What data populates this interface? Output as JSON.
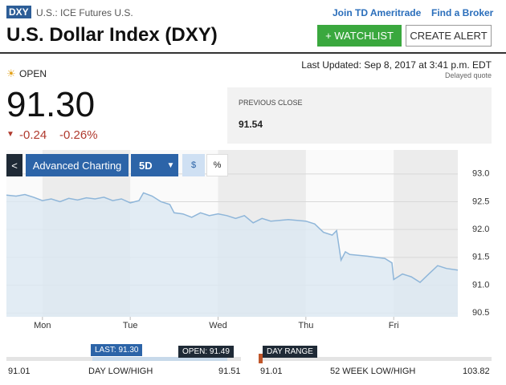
{
  "header": {
    "badge": "DXY",
    "exchange": "U.S.: ICE Futures U.S.",
    "links": [
      "Join TD Ameritrade",
      "Find a Broker"
    ],
    "title": "U.S. Dollar Index (DXY)",
    "buttons": [
      "+ WATCHLIST",
      "CREATE ALERT"
    ]
  },
  "quote": {
    "status": "OPEN",
    "last_updated": "Last Updated: Sep 8, 2017 at 3:41 p.m. EDT",
    "delayed": "Delayed quote",
    "price": "91.30",
    "change": "-0.24",
    "change_pct": "-0.26%",
    "previous_close_label": "PREVIOUS CLOSE",
    "previous_close": "91.54"
  },
  "chart_controls": {
    "back": "<",
    "advanced": "Advanced Charting",
    "range": "5D",
    "dollar": "$",
    "percent": "%"
  },
  "chart_data": {
    "type": "line",
    "color": "#8fb6d9",
    "fill": "#dce8f3",
    "x": [
      -0.41,
      -0.3,
      -0.2,
      -0.1,
      0,
      0.1,
      0.2,
      0.3,
      0.4,
      0.5,
      0.6,
      0.7,
      0.8,
      0.9,
      1.0,
      1.1,
      1.15,
      1.25,
      1.35,
      1.45,
      1.5,
      1.6,
      1.7,
      1.8,
      1.9,
      2.0,
      2.1,
      2.2,
      2.3,
      2.4,
      2.5,
      2.6,
      2.8,
      3.0,
      3.1,
      3.2,
      3.3,
      3.35,
      3.4,
      3.45,
      3.5,
      3.7,
      3.9,
      3.98,
      4.0,
      4.1,
      4.2,
      4.3,
      4.4,
      4.5,
      4.6,
      4.73
    ],
    "values": [
      92.62,
      92.6,
      92.63,
      92.58,
      92.52,
      92.55,
      92.5,
      92.56,
      92.53,
      92.57,
      92.55,
      92.58,
      92.52,
      92.55,
      92.48,
      92.52,
      92.66,
      92.6,
      92.5,
      92.45,
      92.3,
      92.28,
      92.22,
      92.3,
      92.25,
      92.28,
      92.25,
      92.2,
      92.25,
      92.12,
      92.2,
      92.15,
      92.18,
      92.15,
      92.1,
      91.95,
      91.9,
      91.98,
      91.45,
      91.6,
      91.55,
      91.52,
      91.48,
      91.4,
      91.1,
      91.2,
      91.15,
      91.05,
      91.2,
      91.35,
      91.3,
      91.27
    ],
    "xlim": [
      -0.41,
      4.73
    ],
    "xticks": [
      {
        "value": 0,
        "label": "Mon"
      },
      {
        "value": 1,
        "label": "Tue"
      },
      {
        "value": 2,
        "label": "Wed"
      },
      {
        "value": 3,
        "label": "Thu"
      },
      {
        "value": 4,
        "label": "Fri"
      }
    ],
    "ylim": [
      90.43,
      93.43
    ],
    "yticks": [
      {
        "value": 93,
        "label": "93.0"
      },
      92.5,
      {
        "value": 92,
        "label": "92.0"
      },
      91.5,
      {
        "value": 91,
        "label": "91.0"
      },
      90.5
    ],
    "grid": true
  },
  "ranges": [
    {
      "last": "LAST: 91.30",
      "open": "OPEN: 91.49",
      "low": "91.01",
      "label": "DAY LOW/HIGH",
      "high": "91.51"
    },
    {
      "marker": "DAY RANGE",
      "low": "91.01",
      "label": "52 WEEK LOW/HIGH",
      "high": "103.82"
    }
  ]
}
